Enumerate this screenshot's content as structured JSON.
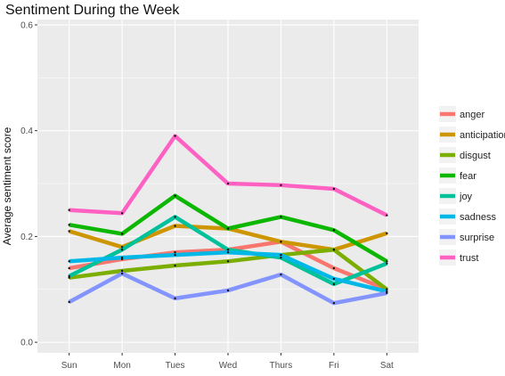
{
  "chart_data": {
    "type": "line",
    "title": "Sentiment During the Week",
    "xlabel": "",
    "ylabel": "Average sentiment score",
    "categories": [
      "Sun",
      "Mon",
      "Tues",
      "Wed",
      "Thurs",
      "Fri",
      "Sat"
    ],
    "ylim": [
      -0.02,
      0.61
    ],
    "yticks": [
      0.0,
      0.2,
      0.4,
      0.6
    ],
    "ytick_labels": [
      "0.0",
      "0.2",
      "0.4",
      "0.6"
    ],
    "grid": true,
    "legend_position": "right",
    "panel_background": "#ebebeb",
    "series": [
      {
        "name": "anger",
        "color": "#f8766d",
        "values": [
          0.14,
          0.157,
          0.17,
          0.175,
          0.19,
          0.14,
          0.1
        ]
      },
      {
        "name": "anticipation",
        "color": "#cd9600",
        "values": [
          0.21,
          0.18,
          0.22,
          0.215,
          0.19,
          0.175,
          0.206
        ]
      },
      {
        "name": "disgust",
        "color": "#7cae00",
        "values": [
          0.122,
          0.135,
          0.145,
          0.153,
          0.165,
          0.175,
          0.1
        ]
      },
      {
        "name": "fear",
        "color": "#0cb702",
        "values": [
          0.222,
          0.205,
          0.277,
          0.215,
          0.237,
          0.212,
          0.153
        ]
      },
      {
        "name": "joy",
        "color": "#00c19a",
        "values": [
          0.125,
          0.175,
          0.237,
          0.175,
          0.16,
          0.11,
          0.149
        ]
      },
      {
        "name": "sadness",
        "color": "#00b8e7",
        "values": [
          0.153,
          0.16,
          0.165,
          0.17,
          0.165,
          0.12,
          0.096
        ]
      },
      {
        "name": "surprise",
        "color": "#8494ff",
        "values": [
          0.076,
          0.13,
          0.083,
          0.098,
          0.128,
          0.074,
          0.093
        ]
      },
      {
        "name": "trust",
        "color": "#ff61c3",
        "values": [
          0.25,
          0.244,
          0.39,
          0.3,
          0.297,
          0.29,
          0.24
        ]
      }
    ]
  }
}
